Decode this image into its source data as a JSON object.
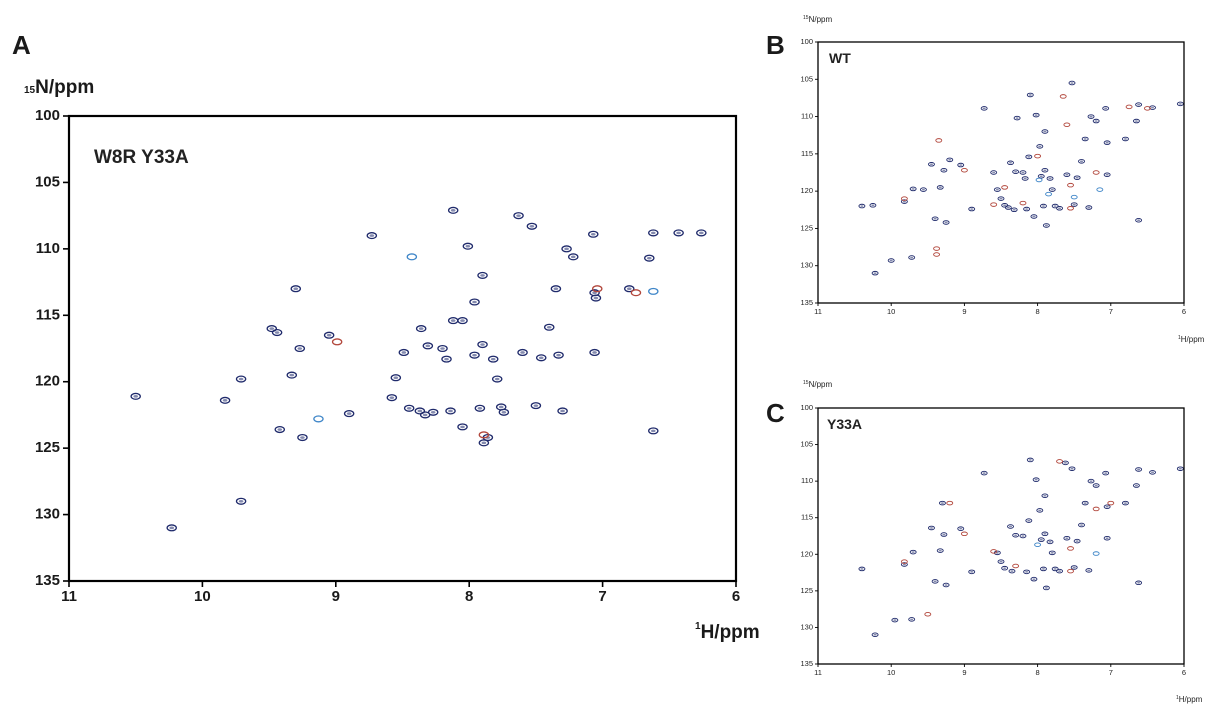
{
  "colors": {
    "peak_primary": "#1f2a6b",
    "peak_overlay_red": "#b2473c",
    "peak_overlay_blue": "#3f86c8",
    "frame": "#000000"
  },
  "chart_data": [
    {
      "panel": "A",
      "type": "scatter",
      "sample_label": "W8R Y33A",
      "ylabel": "N/ppm",
      "ylabel_sup": "15",
      "xlabel": "H/ppm",
      "xlabel_sup": "1",
      "xlim": [
        11,
        6
      ],
      "ylim": [
        100,
        135
      ],
      "x_ticks": [
        "11",
        "10",
        "9",
        "8",
        "7",
        "6"
      ],
      "y_ticks": [
        "100",
        "105",
        "110",
        "115",
        "120",
        "125",
        "130",
        "135"
      ],
      "grid": false,
      "series": [
        {
          "color_key": "peak_primary",
          "points": [
            [
              10.5,
              121.1
            ],
            [
              10.23,
              131.0
            ],
            [
              9.83,
              121.4
            ],
            [
              9.71,
              119.8
            ],
            [
              9.71,
              129.0
            ],
            [
              9.48,
              116.0
            ],
            [
              9.44,
              116.3
            ],
            [
              9.42,
              123.6
            ],
            [
              9.33,
              119.5
            ],
            [
              9.3,
              113.0
            ],
            [
              9.27,
              117.5
            ],
            [
              9.25,
              124.2
            ],
            [
              9.05,
              116.5
            ],
            [
              8.9,
              122.4
            ],
            [
              8.73,
              109.0
            ],
            [
              8.58,
              121.2
            ],
            [
              8.55,
              119.7
            ],
            [
              8.49,
              117.8
            ],
            [
              8.45,
              122.0
            ],
            [
              8.37,
              122.2
            ],
            [
              8.36,
              116.0
            ],
            [
              8.33,
              122.5
            ],
            [
              8.31,
              117.3
            ],
            [
              8.27,
              122.3
            ],
            [
              8.2,
              117.5
            ],
            [
              8.17,
              118.3
            ],
            [
              8.14,
              122.2
            ],
            [
              8.12,
              115.4
            ],
            [
              8.12,
              107.1
            ],
            [
              8.05,
              115.4
            ],
            [
              8.05,
              123.4
            ],
            [
              8.01,
              109.8
            ],
            [
              7.96,
              118.0
            ],
            [
              7.96,
              114.0
            ],
            [
              7.92,
              122.0
            ],
            [
              7.9,
              117.2
            ],
            [
              7.9,
              112.0
            ],
            [
              7.89,
              124.6
            ],
            [
              7.86,
              124.2
            ],
            [
              7.82,
              118.3
            ],
            [
              7.79,
              119.8
            ],
            [
              7.76,
              121.9
            ],
            [
              7.74,
              122.3
            ],
            [
              7.63,
              107.5
            ],
            [
              7.6,
              117.8
            ],
            [
              7.53,
              108.3
            ],
            [
              7.5,
              121.8
            ],
            [
              7.46,
              118.2
            ],
            [
              7.4,
              115.9
            ],
            [
              7.35,
              113.0
            ],
            [
              7.33,
              118.0
            ],
            [
              7.3,
              122.2
            ],
            [
              7.27,
              110.0
            ],
            [
              7.22,
              110.6
            ],
            [
              7.07,
              108.9
            ],
            [
              7.06,
              113.3
            ],
            [
              7.05,
              113.7
            ],
            [
              7.06,
              117.8
            ],
            [
              6.8,
              113.0
            ],
            [
              6.65,
              110.7
            ],
            [
              6.62,
              123.7
            ],
            [
              6.62,
              108.8
            ],
            [
              6.43,
              108.8
            ],
            [
              6.26,
              108.8
            ]
          ]
        },
        {
          "color_key": "peak_overlay_red",
          "points": [
            [
              8.99,
              117.0
            ],
            [
              6.75,
              113.3
            ],
            [
              7.04,
              113.0
            ],
            [
              7.89,
              124.0
            ]
          ]
        },
        {
          "color_key": "peak_overlay_blue",
          "points": [
            [
              9.13,
              122.8
            ],
            [
              8.43,
              110.6
            ],
            [
              6.62,
              113.2
            ]
          ]
        }
      ]
    },
    {
      "panel": "B",
      "type": "scatter",
      "sample_label": "WT",
      "ylabel": "N/ppm",
      "ylabel_sup": "15",
      "xlabel": "H/ppm",
      "xlabel_sup": "1",
      "xlim": [
        11,
        6
      ],
      "ylim": [
        100,
        135
      ],
      "x_ticks": [
        "11",
        "10",
        "9",
        "8",
        "7",
        "6"
      ],
      "y_ticks": [
        "100",
        "105",
        "110",
        "115",
        "120",
        "125",
        "130",
        "135"
      ],
      "grid": false,
      "series": [
        {
          "color_key": "peak_primary",
          "points": [
            [
              10.4,
              122.0
            ],
            [
              10.25,
              121.9
            ],
            [
              10.22,
              131.0
            ],
            [
              10.0,
              129.3
            ],
            [
              9.82,
              121.4
            ],
            [
              9.72,
              128.9
            ],
            [
              9.7,
              119.7
            ],
            [
              9.56,
              119.8
            ],
            [
              9.45,
              116.4
            ],
            [
              9.4,
              123.7
            ],
            [
              9.33,
              119.5
            ],
            [
              9.28,
              117.2
            ],
            [
              9.25,
              124.2
            ],
            [
              9.2,
              115.8
            ],
            [
              9.05,
              116.5
            ],
            [
              8.9,
              122.4
            ],
            [
              8.73,
              108.9
            ],
            [
              8.6,
              117.5
            ],
            [
              8.55,
              119.8
            ],
            [
              8.5,
              121.0
            ],
            [
              8.45,
              121.9
            ],
            [
              8.4,
              122.2
            ],
            [
              8.37,
              116.2
            ],
            [
              8.32,
              122.5
            ],
            [
              8.3,
              117.4
            ],
            [
              8.28,
              110.2
            ],
            [
              8.2,
              117.5
            ],
            [
              8.17,
              118.3
            ],
            [
              8.15,
              122.4
            ],
            [
              8.12,
              115.4
            ],
            [
              8.1,
              107.1
            ],
            [
              8.05,
              123.4
            ],
            [
              8.02,
              109.8
            ],
            [
              7.97,
              114.0
            ],
            [
              7.95,
              118.0
            ],
            [
              7.92,
              122.0
            ],
            [
              7.9,
              117.2
            ],
            [
              7.9,
              112.0
            ],
            [
              7.88,
              124.6
            ],
            [
              7.83,
              118.3
            ],
            [
              7.8,
              119.8
            ],
            [
              7.76,
              122.0
            ],
            [
              7.7,
              122.3
            ],
            [
              7.6,
              117.8
            ],
            [
              7.53,
              105.5
            ],
            [
              7.5,
              121.8
            ],
            [
              7.46,
              118.2
            ],
            [
              7.4,
              116.0
            ],
            [
              7.35,
              113.0
            ],
            [
              7.3,
              122.2
            ],
            [
              7.27,
              110.0
            ],
            [
              7.2,
              110.6
            ],
            [
              7.07,
              108.9
            ],
            [
              7.05,
              113.5
            ],
            [
              7.05,
              117.8
            ],
            [
              6.8,
              113.0
            ],
            [
              6.65,
              110.6
            ],
            [
              6.62,
              123.9
            ],
            [
              6.62,
              108.4
            ],
            [
              6.43,
              108.8
            ],
            [
              6.05,
              108.3
            ]
          ]
        },
        {
          "color_key": "peak_overlay_red",
          "points": [
            [
              9.82,
              121.0
            ],
            [
              9.35,
              113.2
            ],
            [
              9.38,
              127.7
            ],
            [
              9.38,
              128.5
            ],
            [
              9.0,
              117.2
            ],
            [
              8.6,
              121.8
            ],
            [
              8.45,
              119.5
            ],
            [
              8.2,
              121.6
            ],
            [
              8.0,
              115.3
            ],
            [
              7.65,
              107.3
            ],
            [
              7.55,
              119.2
            ],
            [
              7.55,
              122.3
            ],
            [
              7.2,
              117.5
            ],
            [
              6.75,
              108.7
            ],
            [
              6.5,
              108.9
            ],
            [
              7.6,
              111.1
            ]
          ]
        },
        {
          "color_key": "peak_overlay_blue",
          "points": [
            [
              7.98,
              118.5
            ],
            [
              7.85,
              120.4
            ],
            [
              7.5,
              120.8
            ],
            [
              7.15,
              119.8
            ]
          ]
        }
      ]
    },
    {
      "panel": "C",
      "type": "scatter",
      "sample_label": "Y33A",
      "ylabel": "N/ppm",
      "ylabel_sup": "15",
      "xlabel": "H/ppm",
      "xlabel_sup": "1",
      "xlim": [
        11,
        6
      ],
      "ylim": [
        100,
        135
      ],
      "x_ticks": [
        "11",
        "10",
        "9",
        "8",
        "7",
        "6"
      ],
      "y_ticks": [
        "100",
        "105",
        "110",
        "115",
        "120",
        "125",
        "130",
        "135"
      ],
      "grid": false,
      "series": [
        {
          "color_key": "peak_primary",
          "points": [
            [
              10.4,
              122.0
            ],
            [
              10.22,
              131.0
            ],
            [
              9.95,
              129.0
            ],
            [
              9.82,
              121.4
            ],
            [
              9.72,
              128.9
            ],
            [
              9.7,
              119.7
            ],
            [
              9.45,
              116.4
            ],
            [
              9.4,
              123.7
            ],
            [
              9.33,
              119.5
            ],
            [
              9.3,
              113.0
            ],
            [
              9.28,
              117.3
            ],
            [
              9.25,
              124.2
            ],
            [
              9.05,
              116.5
            ],
            [
              8.9,
              122.4
            ],
            [
              8.73,
              108.9
            ],
            [
              8.55,
              119.8
            ],
            [
              8.5,
              121.0
            ],
            [
              8.45,
              121.9
            ],
            [
              8.37,
              116.2
            ],
            [
              8.35,
              122.3
            ],
            [
              8.3,
              117.4
            ],
            [
              8.2,
              117.5
            ],
            [
              8.15,
              122.4
            ],
            [
              8.12,
              115.4
            ],
            [
              8.1,
              107.1
            ],
            [
              8.05,
              123.4
            ],
            [
              8.02,
              109.8
            ],
            [
              7.97,
              114.0
            ],
            [
              7.95,
              118.0
            ],
            [
              7.92,
              122.0
            ],
            [
              7.9,
              117.2
            ],
            [
              7.9,
              112.0
            ],
            [
              7.88,
              124.6
            ],
            [
              7.83,
              118.3
            ],
            [
              7.8,
              119.8
            ],
            [
              7.76,
              122.0
            ],
            [
              7.7,
              122.3
            ],
            [
              7.62,
              107.5
            ],
            [
              7.6,
              117.8
            ],
            [
              7.53,
              108.3
            ],
            [
              7.5,
              121.8
            ],
            [
              7.46,
              118.2
            ],
            [
              7.4,
              116.0
            ],
            [
              7.35,
              113.0
            ],
            [
              7.3,
              122.2
            ],
            [
              7.27,
              110.0
            ],
            [
              7.2,
              110.6
            ],
            [
              7.07,
              108.9
            ],
            [
              7.05,
              113.5
            ],
            [
              7.05,
              117.8
            ],
            [
              6.8,
              113.0
            ],
            [
              6.65,
              110.6
            ],
            [
              6.62,
              123.9
            ],
            [
              6.62,
              108.4
            ],
            [
              6.43,
              108.8
            ],
            [
              6.05,
              108.3
            ]
          ]
        },
        {
          "color_key": "peak_overlay_red",
          "points": [
            [
              9.82,
              121.0
            ],
            [
              9.5,
              128.2
            ],
            [
              9.2,
              113.0
            ],
            [
              9.0,
              117.2
            ],
            [
              8.6,
              119.6
            ],
            [
              8.3,
              121.6
            ],
            [
              7.7,
              107.3
            ],
            [
              7.55,
              119.2
            ],
            [
              7.55,
              122.3
            ],
            [
              7.2,
              113.8
            ],
            [
              7.0,
              113.0
            ]
          ]
        },
        {
          "color_key": "peak_overlay_blue",
          "points": [
            [
              8.0,
              118.7
            ],
            [
              7.2,
              119.9
            ]
          ]
        }
      ]
    }
  ]
}
